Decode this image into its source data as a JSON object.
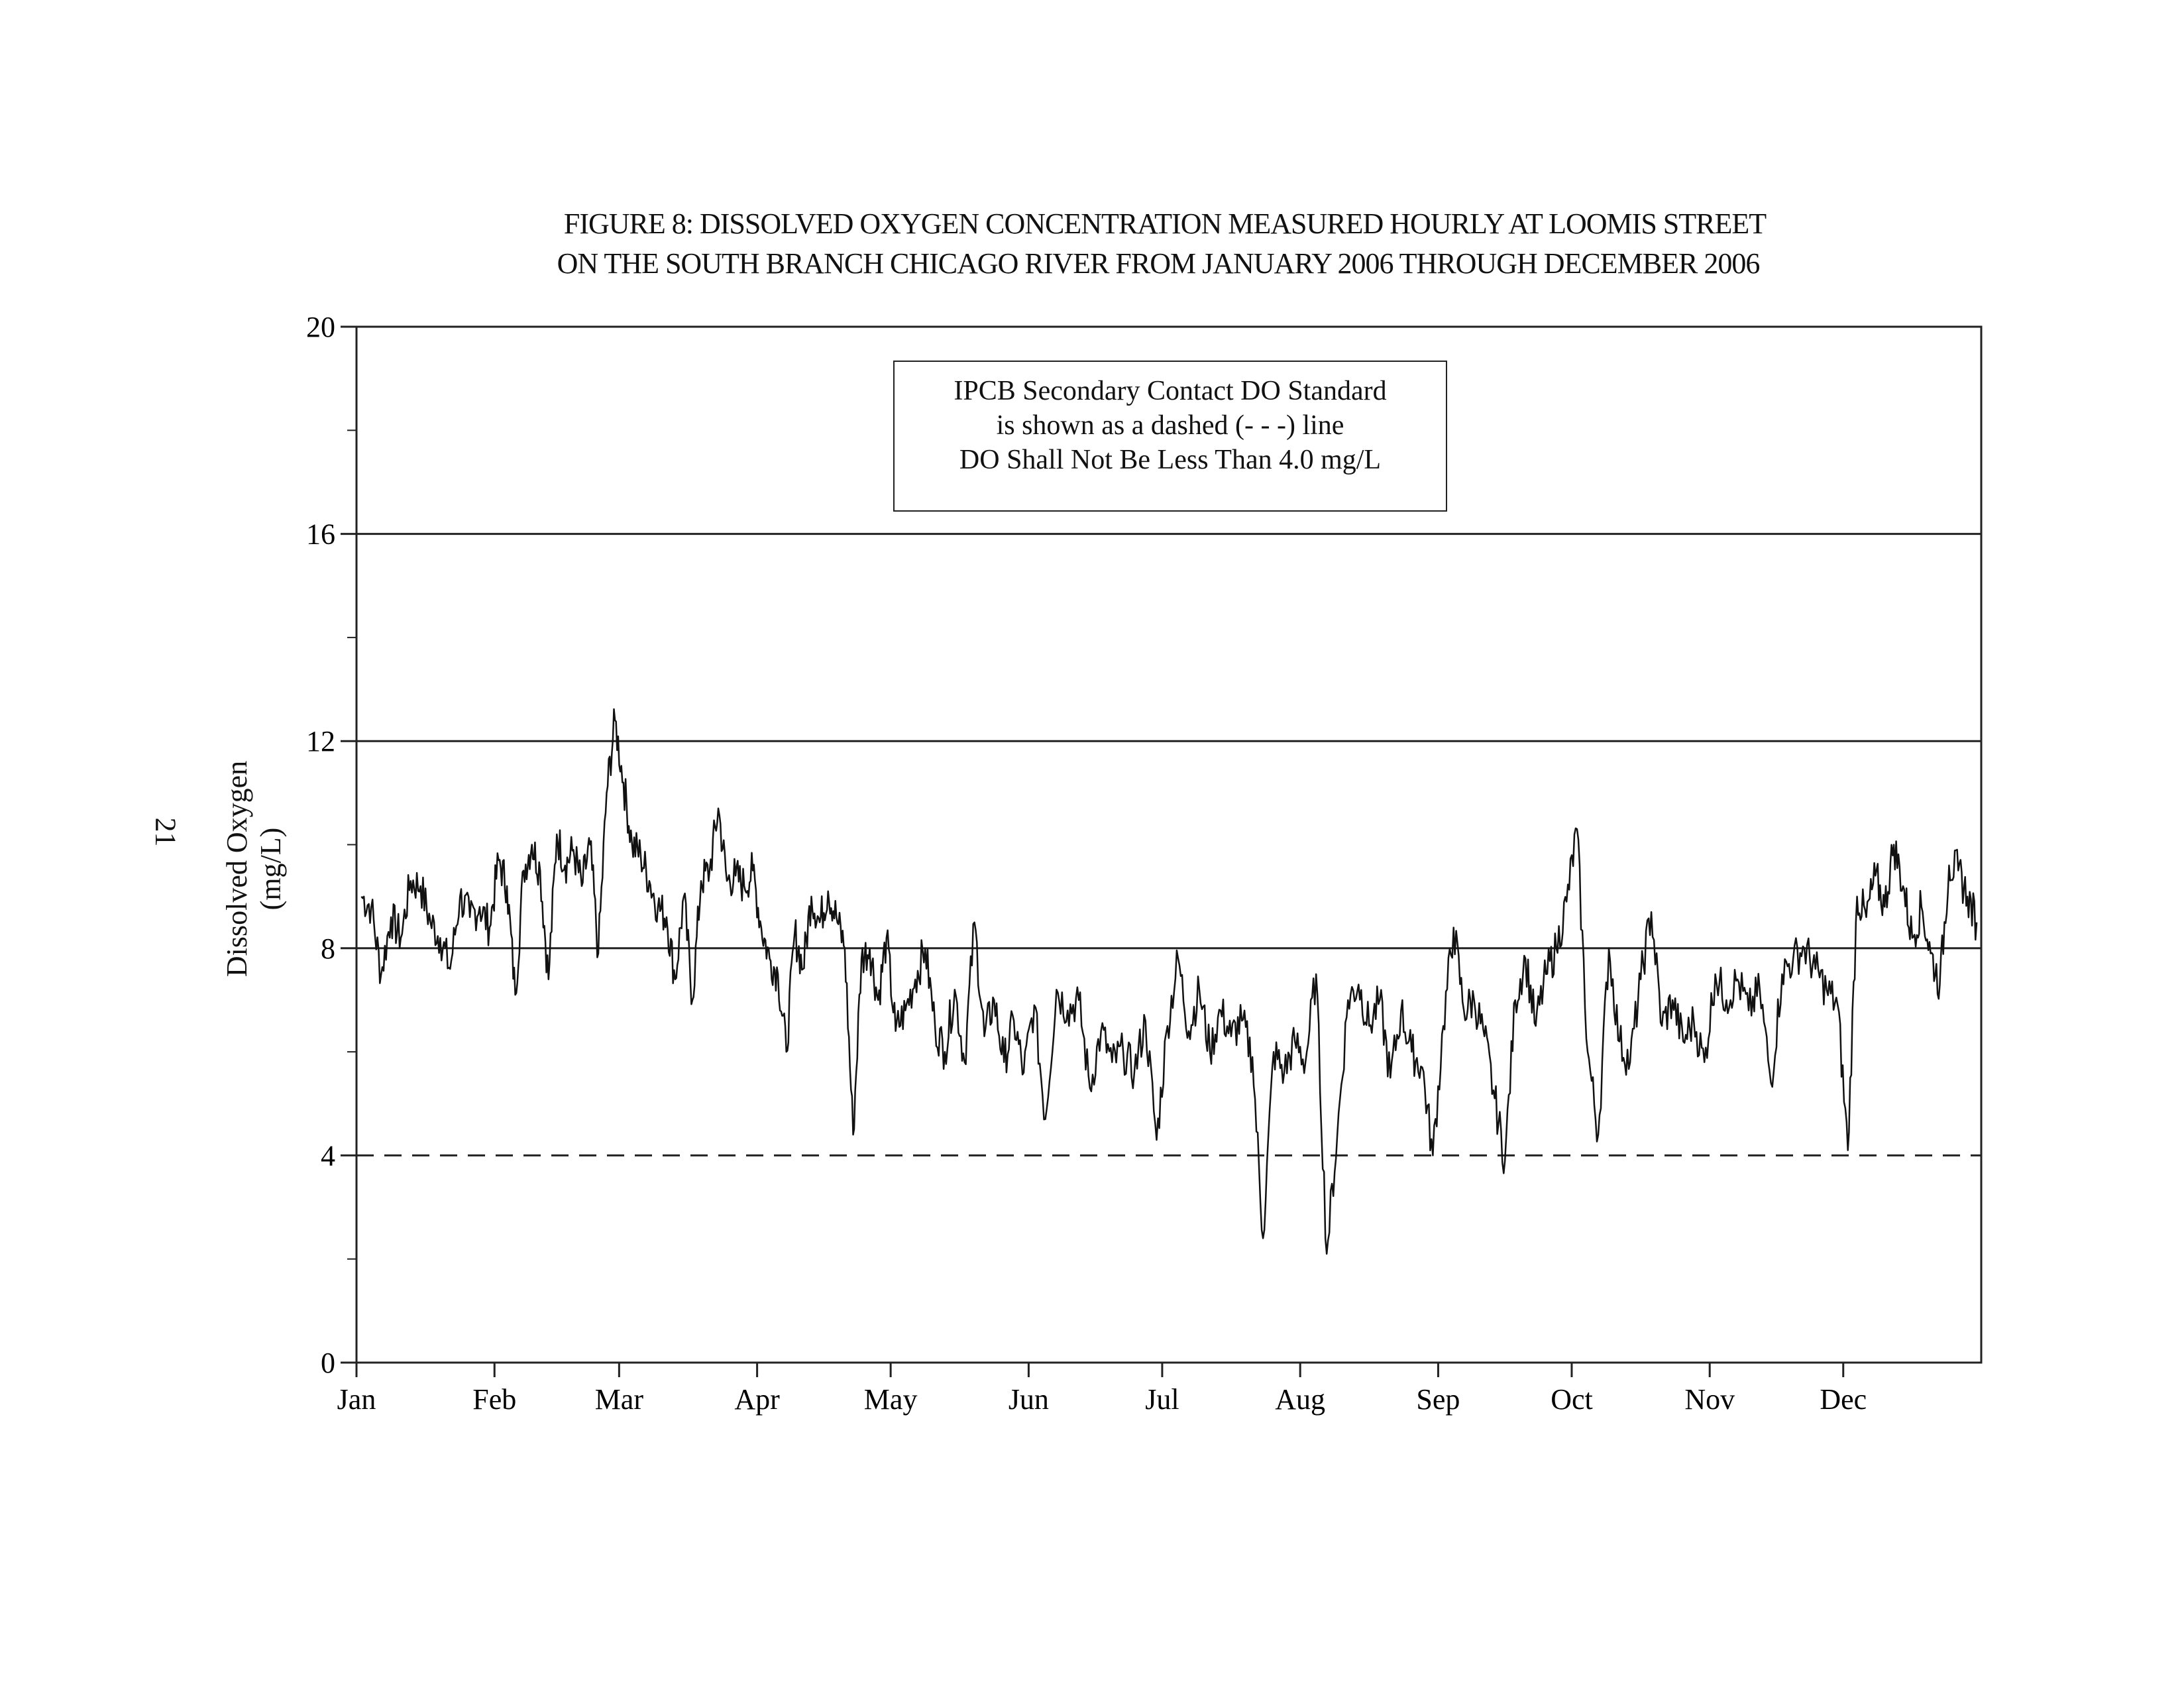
{
  "chart_data": {
    "type": "line",
    "title": "FIGURE 8: DISSOLVED OXYGEN CONCENTRATION MEASURED HOURLY AT LOOMIS STREET",
    "subtitle": "ON THE SOUTH BRANCH CHICAGO RIVER FROM JANUARY 2006 THROUGH DECEMBER 2006",
    "xlabel": "",
    "ylabel": "Dissolved Oxygen (mg/L)",
    "ylim": [
      0,
      20
    ],
    "xlim_days": [
      0,
      365
    ],
    "yticks": [
      "0",
      "4",
      "8",
      "12",
      "16",
      "20"
    ],
    "gridlines": [
      8,
      12,
      16
    ],
    "standard_line": {
      "value": 4.0,
      "style": "dashed"
    },
    "months": [
      "Jan",
      "Feb",
      "Mar",
      "Apr",
      "May",
      "Jun",
      "Jul",
      "Aug",
      "Sep",
      "Oct",
      "Nov",
      "Dec"
    ],
    "month_start_days": [
      0,
      31,
      59,
      90,
      120,
      151,
      181,
      212,
      243,
      273,
      304,
      334,
      365
    ],
    "series": [
      {
        "name": "Dissolved Oxygen (hourly)",
        "values_by_month": [
          [
            9.0,
            8.8,
            7.5,
            8.6,
            8.2,
            9.3,
            9.2,
            8.5,
            8.2,
            7.6,
            9.0,
            8.6,
            8.8,
            8.4
          ],
          [
            9.7,
            9.2,
            7.1,
            9.5,
            10.0,
            9.5,
            7.4,
            10.2,
            9.6,
            9.9,
            9.2,
            10.0,
            7.9,
            11.0,
            12.4
          ],
          [
            11.2,
            10.0,
            9.8,
            9.3,
            8.8,
            8.6,
            7.4,
            9.0,
            7.0,
            9.3,
            9.5,
            10.7,
            9.3,
            9.4,
            9.2,
            9.5
          ],
          [
            8.4,
            7.8,
            7.5,
            6.0,
            8.3,
            7.6,
            9.0,
            8.5,
            9.1,
            8.6,
            8.0,
            4.4,
            7.8,
            8.0,
            7.0,
            8.2
          ],
          [
            6.4,
            6.8,
            7.4,
            8.0,
            6.5,
            6.0,
            7.2,
            5.8,
            8.5,
            6.3,
            7.0,
            5.8,
            6.6,
            5.6
          ],
          [
            6.9,
            4.7,
            7.2,
            6.8,
            7.0,
            5.3,
            6.4,
            5.8,
            6.0,
            5.6,
            6.6,
            4.3
          ],
          [
            6.5,
            7.8,
            6.4,
            7.2,
            6.0,
            6.8,
            6.3,
            6.6,
            5.9,
            2.4,
            6.0,
            5.6,
            6.2
          ],
          [
            5.8,
            7.5,
            2.1,
            4.4,
            7.0,
            7.3,
            6.5,
            7.0,
            5.5,
            6.8,
            6.0,
            5.7,
            4.0
          ],
          [
            6.5,
            8.4,
            6.8,
            7.0,
            6.3,
            5.1,
            3.9,
            7.0,
            7.8,
            6.5,
            7.5,
            8.0,
            8.9
          ],
          [
            10.3,
            6.0,
            4.4,
            8.0,
            6.2,
            5.8,
            7.4,
            8.7,
            6.5,
            7.0,
            6.2,
            6.6,
            5.8
          ],
          [
            7.5,
            7.0,
            7.4,
            6.8,
            7.2,
            5.4,
            7.5,
            7.8,
            8.0,
            7.6,
            7.2,
            6.9
          ],
          [
            4.1,
            9.0,
            8.6,
            9.4,
            8.8,
            10.0,
            9.2,
            8.2,
            8.8,
            7.9,
            7.3,
            9.6,
            9.5,
            9.0,
            8.5
          ]
        ]
      }
    ]
  },
  "note": {
    "line1": "IPCB Secondary Contact DO Standard",
    "line2": "is shown as a dashed (- - -) line",
    "line3": "DO Shall Not Be Less Than 4.0 mg/L"
  },
  "page_number": "21"
}
